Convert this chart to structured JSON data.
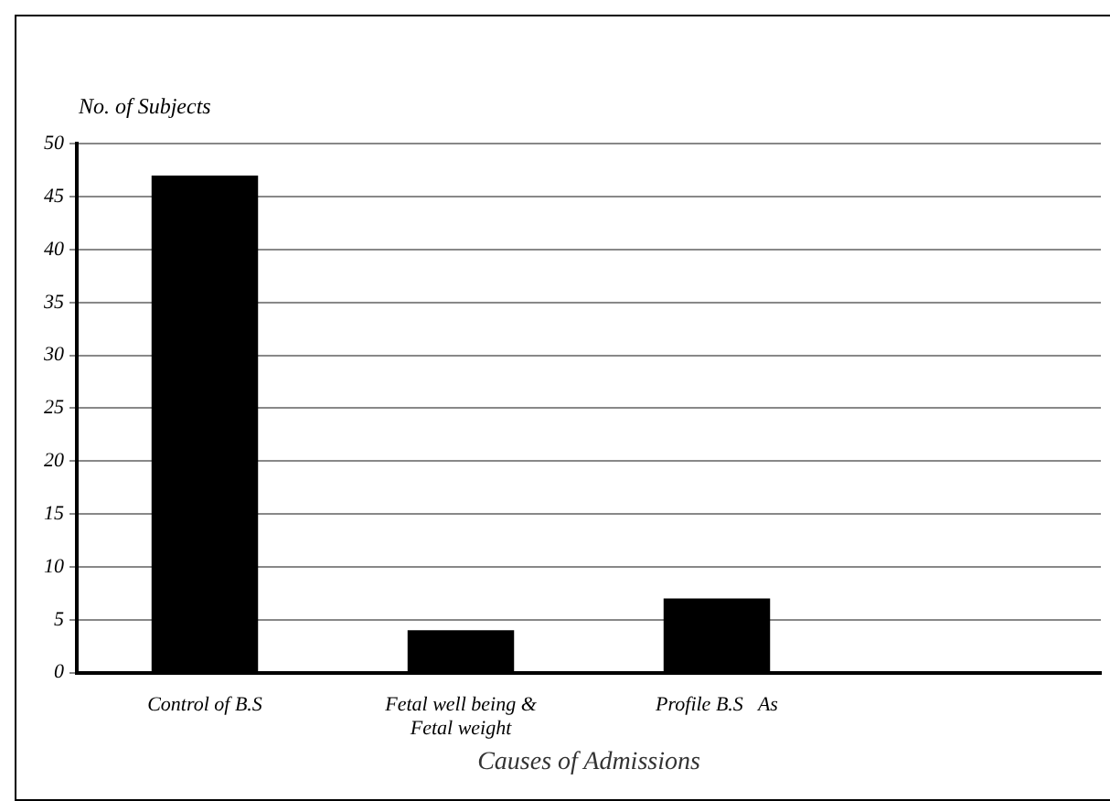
{
  "chart_data": {
    "type": "bar",
    "ylabel": "No. of Subjects",
    "xlabel": "Causes of Admissions",
    "categories": [
      "Control of B.S",
      [
        "Fetal well being &",
        "Fetal weight"
      ],
      "Profile B.S   As",
      null
    ],
    "values": [
      47,
      4,
      7,
      null
    ],
    "color": "#000000",
    "ylim": [
      0,
      50
    ],
    "yticks": [
      0,
      5,
      10,
      15,
      20,
      25,
      30,
      35,
      40,
      45,
      50
    ],
    "grid": "y",
    "legend": false
  }
}
